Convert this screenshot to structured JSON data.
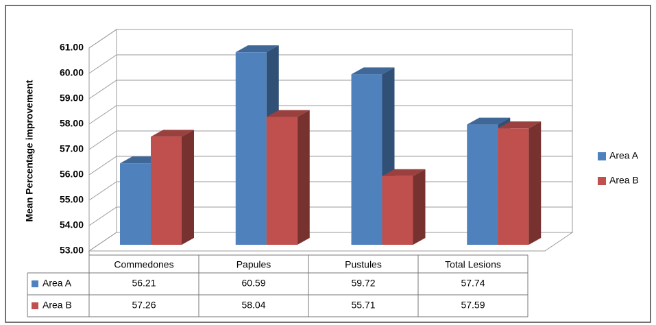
{
  "chart_data": {
    "type": "bar3d",
    "ylabel": "Mean Percentage improvement",
    "categories": [
      "Commedones",
      "Papules",
      "Pustules",
      "Total Lesions"
    ],
    "series": [
      {
        "name": "Area A",
        "color": "#4f81bd",
        "values": [
          56.21,
          60.59,
          59.72,
          57.74
        ]
      },
      {
        "name": "Area B",
        "color": "#c0504d",
        "values": [
          57.26,
          58.04,
          55.71,
          57.59
        ]
      }
    ],
    "ylim": [
      53,
      61
    ],
    "yticks": [
      {
        "value": 53,
        "label": "53.00"
      },
      {
        "value": 54,
        "label": "54.00"
      },
      {
        "value": 55,
        "label": "55.00"
      },
      {
        "value": 56,
        "label": "56.00"
      },
      {
        "value": 57,
        "label": "57.00"
      },
      {
        "value": 58,
        "label": "58.00"
      },
      {
        "value": 59,
        "label": "59.00"
      },
      {
        "value": 60,
        "label": "60.00"
      },
      {
        "value": 61,
        "label": "61.00"
      }
    ],
    "grid": true,
    "legend": "right",
    "data_table": true
  }
}
